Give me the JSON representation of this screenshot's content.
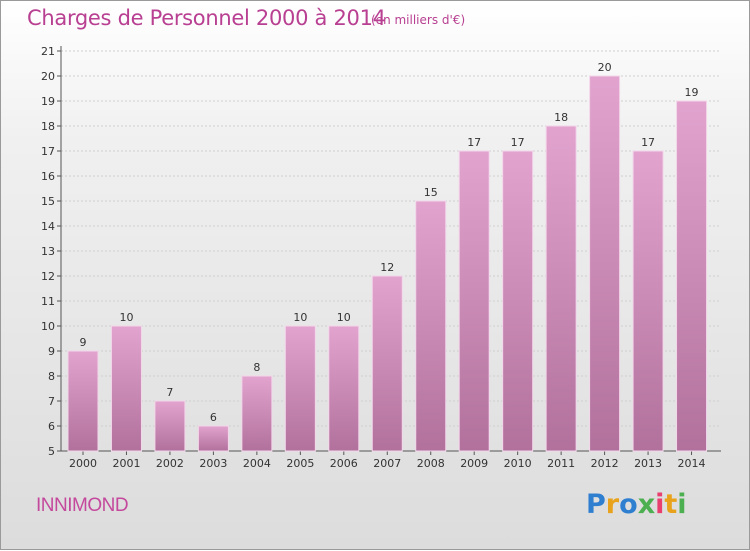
{
  "title": "Charges de Personnel 2000 à 2014",
  "subtitle": "(en milliers d'€)",
  "commune": "INNIMOND",
  "logo": {
    "text": "Proxiti",
    "colors": [
      "#2f7fd1",
      "#e8a21b",
      "#2f7fd1",
      "#4caf50",
      "#e83f6f",
      "#e8a21b",
      "#4caf50"
    ]
  },
  "colors": {
    "bar_top": "#e2a4cf",
    "bar_bottom": "#b1719c",
    "title": "#b83f91"
  },
  "chart_data": {
    "type": "bar",
    "categories": [
      "2000",
      "2001",
      "2002",
      "2003",
      "2004",
      "2005",
      "2006",
      "2007",
      "2008",
      "2009",
      "2010",
      "2011",
      "2012",
      "2013",
      "2014"
    ],
    "values": [
      9,
      10,
      7,
      6,
      8,
      10,
      10,
      12,
      15,
      17,
      17,
      18,
      20,
      17,
      19
    ],
    "value_labels": [
      "9",
      "10",
      "7",
      "6",
      "8",
      "10",
      "10",
      "12",
      "15",
      "17",
      "17",
      "18",
      "20",
      "17",
      "19"
    ],
    "title": "Charges de Personnel 2000 à 2014",
    "subtitle": "(en milliers d'€)",
    "xlabel": "",
    "ylabel": "",
    "ylim": [
      5,
      21
    ],
    "yticks": [
      "5",
      "6",
      "7",
      "8",
      "9",
      "10",
      "11",
      "12",
      "13",
      "14",
      "15",
      "16",
      "17",
      "18",
      "19",
      "20",
      "21"
    ],
    "grid": true
  }
}
